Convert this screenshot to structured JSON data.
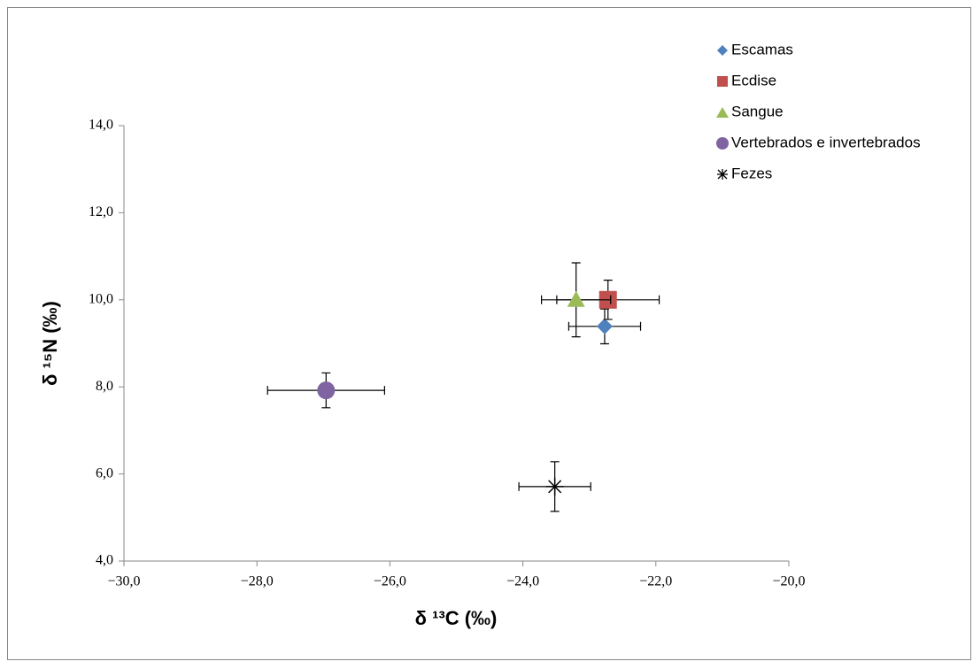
{
  "chart_data": {
    "type": "scatter",
    "xlabel": "δ ¹³C (‰)",
    "ylabel": "δ ¹⁵N (‰)",
    "xlim": [
      -30,
      -20
    ],
    "xticks": [
      {
        "value": -30,
        "label": "−30,0"
      },
      {
        "value": -28,
        "label": "−28,0"
      },
      {
        "value": -26,
        "label": "−26,0"
      },
      {
        "value": -24,
        "label": "−24,0"
      },
      {
        "value": -22,
        "label": "−22,0"
      },
      {
        "value": -20,
        "label": "−20,0"
      }
    ],
    "ylim": [
      4,
      14
    ],
    "yticks": [
      {
        "value": 4,
        "label": "4,0"
      },
      {
        "value": 6,
        "label": "6,0"
      },
      {
        "value": 8,
        "label": "8,0"
      },
      {
        "value": 10,
        "label": "10,0"
      },
      {
        "value": 12,
        "label": "12,0"
      },
      {
        "value": 14,
        "label": "14,0"
      }
    ],
    "grid": false,
    "legend": "top-right",
    "series": [
      {
        "name": "Escamas",
        "color": "#4f81bd",
        "marker": "diamond",
        "x": [
          -22.77
        ],
        "values": [
          9.39
        ],
        "xerr": [
          0.54
        ],
        "yerr": [
          0.4
        ]
      },
      {
        "name": "Ecdise",
        "color": "#c0504d",
        "marker": "square",
        "x": [
          -22.72
        ],
        "values": [
          10.0
        ],
        "xerr": [
          0.77
        ],
        "yerr": [
          0.45
        ]
      },
      {
        "name": "Sangue",
        "color": "#9bbb59",
        "marker": "triangle",
        "x": [
          -23.2
        ],
        "values": [
          10.0
        ],
        "xerr": [
          0.52
        ],
        "yerr": [
          0.85
        ]
      },
      {
        "name": "Vertebrados e invertebrados",
        "color": "#8064a2",
        "marker": "circle",
        "x": [
          -26.96
        ],
        "values": [
          7.92
        ],
        "xerr": [
          0.88
        ],
        "yerr": [
          0.4
        ]
      },
      {
        "name": "Fezes",
        "color": "#000000",
        "marker": "asterisk",
        "x": [
          -23.52
        ],
        "values": [
          5.71
        ],
        "xerr": [
          0.54
        ],
        "yerr": [
          0.57
        ]
      }
    ]
  }
}
